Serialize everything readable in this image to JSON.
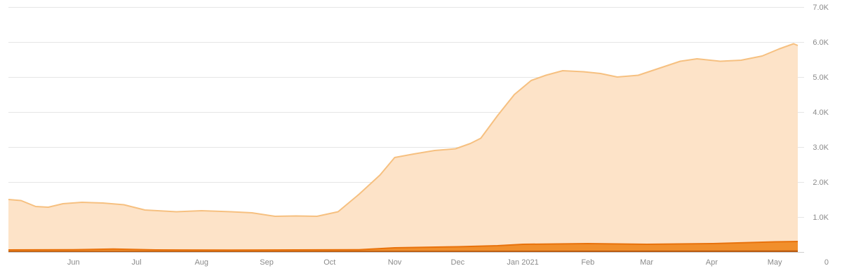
{
  "colors": {
    "primary_fill": "#fde3c8",
    "primary_line": "#f6c080",
    "secondary_fill": "#f08a24",
    "secondary_line": "#e8720c",
    "tertiary_line": "#b85a10",
    "grid": "#e6e6e6",
    "tick_text": "#8a8a8a"
  },
  "chart_data": {
    "type": "area",
    "grid": true,
    "y_axis_position": "right",
    "ylim": [
      0,
      7000
    ],
    "xlim": [
      "2020-05-01",
      "2021-05-15"
    ],
    "y_ticks": [
      {
        "value": 1000,
        "label": "1.0K"
      },
      {
        "value": 2000,
        "label": "2.0K"
      },
      {
        "value": 3000,
        "label": "3.0K"
      },
      {
        "value": 4000,
        "label": "4.0K"
      },
      {
        "value": 5000,
        "label": "5.0K"
      },
      {
        "value": 6000,
        "label": "6.0K"
      },
      {
        "value": 7000,
        "label": "7.0K"
      }
    ],
    "zero_label": "0",
    "x_ticks": [
      {
        "date": "2020-06-01",
        "label": "Jun"
      },
      {
        "date": "2020-07-01",
        "label": "Jul"
      },
      {
        "date": "2020-08-01",
        "label": "Aug"
      },
      {
        "date": "2020-09-01",
        "label": "Sep"
      },
      {
        "date": "2020-10-01",
        "label": "Oct"
      },
      {
        "date": "2020-11-01",
        "label": "Nov"
      },
      {
        "date": "2020-12-01",
        "label": "Dec"
      },
      {
        "date": "2021-01-01",
        "label": "Jan 2021"
      },
      {
        "date": "2021-02-01",
        "label": "Feb"
      },
      {
        "date": "2021-03-01",
        "label": "Mar"
      },
      {
        "date": "2021-04-01",
        "label": "Apr"
      },
      {
        "date": "2021-05-01",
        "label": "May"
      }
    ],
    "series": [
      {
        "points": [
          [
            "2020-05-01",
            1500
          ],
          [
            "2020-05-07",
            1470
          ],
          [
            "2020-05-14",
            1300
          ],
          [
            "2020-05-20",
            1280
          ],
          [
            "2020-05-27",
            1380
          ],
          [
            "2020-06-05",
            1420
          ],
          [
            "2020-06-15",
            1400
          ],
          [
            "2020-06-25",
            1350
          ],
          [
            "2020-07-05",
            1200
          ],
          [
            "2020-07-20",
            1150
          ],
          [
            "2020-08-01",
            1180
          ],
          [
            "2020-08-15",
            1150
          ],
          [
            "2020-08-25",
            1120
          ],
          [
            "2020-09-05",
            1020
          ],
          [
            "2020-09-15",
            1030
          ],
          [
            "2020-09-25",
            1020
          ],
          [
            "2020-10-05",
            1150
          ],
          [
            "2020-10-15",
            1650
          ],
          [
            "2020-10-25",
            2200
          ],
          [
            "2020-11-01",
            2700
          ],
          [
            "2020-11-10",
            2800
          ],
          [
            "2020-11-20",
            2900
          ],
          [
            "2020-11-30",
            2950
          ],
          [
            "2020-12-07",
            3100
          ],
          [
            "2020-12-12",
            3250
          ],
          [
            "2020-12-20",
            3900
          ],
          [
            "2020-12-28",
            4500
          ],
          [
            "2021-01-05",
            4900
          ],
          [
            "2021-01-12",
            5050
          ],
          [
            "2021-01-20",
            5180
          ],
          [
            "2021-01-30",
            5150
          ],
          [
            "2021-02-07",
            5100
          ],
          [
            "2021-02-15",
            5000
          ],
          [
            "2021-02-25",
            5050
          ],
          [
            "2021-03-07",
            5250
          ],
          [
            "2021-03-17",
            5450
          ],
          [
            "2021-03-25",
            5520
          ],
          [
            "2021-04-05",
            5450
          ],
          [
            "2021-04-15",
            5480
          ],
          [
            "2021-04-25",
            5600
          ],
          [
            "2021-05-03",
            5800
          ],
          [
            "2021-05-10",
            5950
          ],
          [
            "2021-05-12",
            5900
          ]
        ]
      },
      {
        "points": [
          [
            "2020-05-01",
            60
          ],
          [
            "2020-06-01",
            65
          ],
          [
            "2020-06-20",
            85
          ],
          [
            "2020-07-10",
            60
          ],
          [
            "2020-08-15",
            55
          ],
          [
            "2020-09-15",
            60
          ],
          [
            "2020-10-15",
            65
          ],
          [
            "2020-11-01",
            120
          ],
          [
            "2020-12-01",
            150
          ],
          [
            "2020-12-20",
            180
          ],
          [
            "2021-01-01",
            220
          ],
          [
            "2021-02-01",
            240
          ],
          [
            "2021-03-01",
            220
          ],
          [
            "2021-04-01",
            240
          ],
          [
            "2021-05-01",
            290
          ],
          [
            "2021-05-12",
            300
          ]
        ]
      },
      {
        "points": [
          [
            "2020-05-01",
            15
          ],
          [
            "2020-08-01",
            15
          ],
          [
            "2020-11-01",
            20
          ],
          [
            "2021-02-01",
            25
          ],
          [
            "2021-05-12",
            30
          ]
        ]
      }
    ]
  }
}
